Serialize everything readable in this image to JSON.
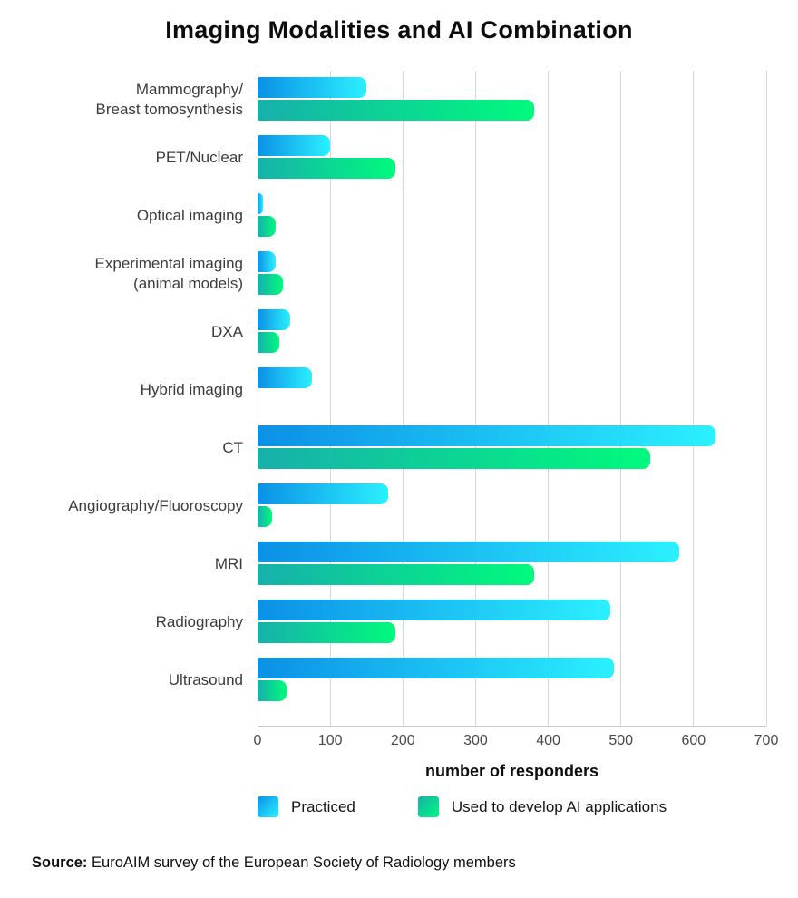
{
  "chart_data": {
    "type": "bar",
    "orientation": "horizontal",
    "title": "Imaging Modalities and AI Combination",
    "categories": [
      "Mammography/\nBreast tomosynthesis",
      "PET/Nuclear",
      "Optical imaging",
      "Experimental imaging\n(animal models)",
      "DXA",
      "Hybrid imaging",
      "CT",
      "Angiography/Fluoroscopy",
      "MRI",
      "Radiography",
      "Ultrasound"
    ],
    "series": [
      {
        "name": "Practiced",
        "color_start": "#0b90e6",
        "color_end": "#2bf0ff",
        "values": [
          150,
          100,
          8,
          25,
          45,
          75,
          630,
          180,
          580,
          485,
          490
        ]
      },
      {
        "name": "Used to develop AI applications",
        "color_start": "#17b0ab",
        "color_end": "#00fa7d",
        "values": [
          380,
          190,
          25,
          35,
          30,
          0,
          540,
          20,
          380,
          190,
          40
        ]
      }
    ],
    "xlabel": "number of responders",
    "xlim": [
      0,
      700
    ],
    "xticks": [
      0,
      100,
      200,
      300,
      400,
      500,
      600,
      700
    ],
    "grid": true,
    "legend_position": "bottom",
    "grid_color": "#d7d7d7",
    "axis_color": "#c9c9c9"
  },
  "source": {
    "label": "Source:",
    "text": " EuroAIM survey of the European Society of Radiology members"
  }
}
